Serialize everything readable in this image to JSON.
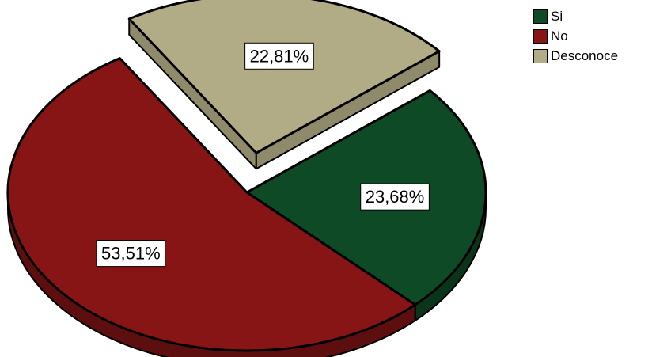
{
  "chart_data": {
    "type": "pie",
    "style": "3d-exploded",
    "slices": [
      {
        "label": "Si",
        "value": 23.68,
        "value_label": "23,68%",
        "color": "#0f4a26",
        "side_color": "#0a351b"
      },
      {
        "label": "No",
        "value": 53.51,
        "value_label": "53,51%",
        "color": "#871515",
        "side_color": "#5d0e0e"
      },
      {
        "label": "Desconoce",
        "value": 22.81,
        "value_label": "22,81%",
        "color": "#b1ac85",
        "side_color": "#8e8a6a",
        "exploded": true
      }
    ],
    "legend": {
      "position": "top-right",
      "entries": [
        "Si",
        "No",
        "Desconoce"
      ]
    }
  }
}
